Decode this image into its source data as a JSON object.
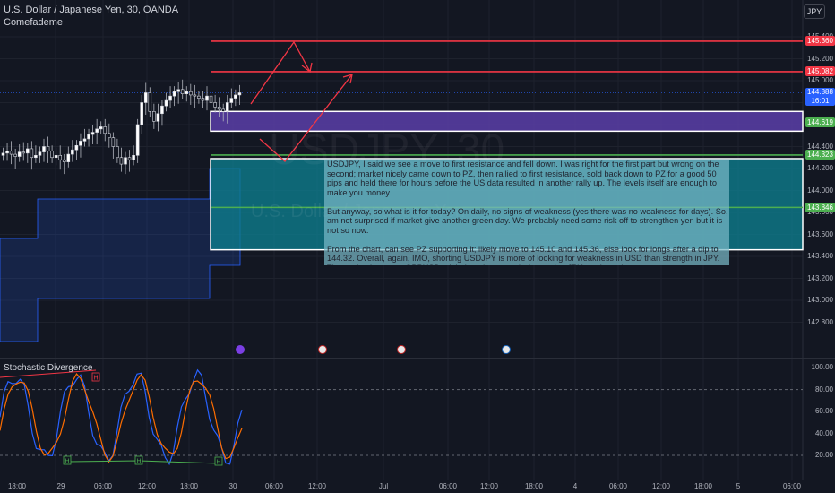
{
  "header": {
    "symbol_line": "U.S. Dollar / Japanese Yen, 30, OANDA",
    "author": "Comefademe"
  },
  "currency_button": "JPY",
  "indicator": {
    "title": "Stochastic Divergence",
    "divergence_labels": [
      "H",
      "H",
      "H",
      "H"
    ]
  },
  "note": {
    "paragraphs": [
      "USDJPY, I said we see a move to first resistance and fell down. I was right for the first part but wrong on the second; market nicely came down to PZ, then rallied to first resistance, sold back down to PZ for a good 50 pips and held there for hours before the US data resulted in another rally up. The levels itself are enough to make you money.",
      "But anyway, so what is it for today? On daily, no signs of weakness (yes there was no weakness for days). So, am not surprised if market give another green day. We probably need some risk off to strengthen yen but it is not so now.",
      "From the chart, can see PZ supporting it; likely move to 145.10 and 145.36, else look for longs after a dip to 144.32. Overall, again, IMO, shorting USDJPY is more of looking for weakness in USD than strength in JPY. Thus going long, say GBPUSD might be a better trade (assuming JPY weakness)."
    ]
  },
  "watermark": {
    "symbol": "USDJPY, 30",
    "name": "U.S. Dollar / Japanese Yen"
  },
  "chart_data": {
    "type": "candlestick",
    "symbol": "U.S. Dollar / Japanese Yen",
    "interval": "30",
    "broker": "OANDA",
    "price_axis": {
      "ticks": [
        "145.400",
        "145.200",
        "145.000",
        "144.800",
        "144.600",
        "144.400",
        "144.200",
        "144.000",
        "143.800",
        "143.600",
        "143.400",
        "143.200",
        "143.000",
        "142.800"
      ],
      "range": [
        142.7,
        145.5
      ]
    },
    "price_badges": [
      {
        "label": "145.360",
        "price": 145.36,
        "color": "#f23645"
      },
      {
        "label": "145.082",
        "price": 145.082,
        "color": "#f23645"
      },
      {
        "label": "144.888",
        "sub": "16:01",
        "price": 144.888,
        "color": "#2962ff"
      },
      {
        "label": "144.619",
        "price": 144.619,
        "color": "#4caf50"
      },
      {
        "label": "144.323",
        "price": 144.323,
        "color": "#4caf50"
      },
      {
        "label": "143.846",
        "price": 143.846,
        "color": "#4caf50"
      }
    ],
    "horizontal_lines": [
      {
        "price": 145.36,
        "color": "#f23645"
      },
      {
        "price": 145.082,
        "color": "#f23645"
      },
      {
        "price": 144.323,
        "color": "#4caf50"
      },
      {
        "price": 143.846,
        "color": "#4caf50"
      }
    ],
    "zones": [
      {
        "from": 144.54,
        "to": 144.72,
        "color": "#5b3ea8"
      },
      {
        "from": 143.46,
        "to": 144.29,
        "color": "#0e7c8c"
      }
    ],
    "time_axis": [
      "18:00",
      "29",
      "06:00",
      "12:00",
      "18:00",
      "30",
      "06:00",
      "12:00",
      "Jul",
      "06:00",
      "12:00",
      "18:00",
      "4",
      "06:00",
      "12:00",
      "18:00",
      "5",
      "06:00"
    ],
    "candles_close_approx": [
      144.34,
      144.36,
      144.33,
      144.31,
      144.35,
      144.34,
      144.38,
      144.3,
      144.32,
      144.35,
      144.4,
      144.36,
      144.3,
      144.32,
      144.28,
      144.26,
      144.33,
      144.37,
      144.41,
      144.45,
      144.47,
      144.51,
      144.53,
      144.56,
      144.58,
      144.52,
      144.48,
      144.4,
      144.3,
      144.24,
      144.3,
      144.28,
      144.32,
      144.6,
      144.8,
      144.89,
      144.72,
      144.63,
      144.7,
      144.77,
      144.82,
      144.86,
      144.9,
      144.92,
      144.88,
      144.9,
      144.87,
      144.86,
      144.84,
      144.82,
      144.86,
      144.8,
      144.76,
      144.74,
      144.72,
      144.8,
      144.84,
      144.87,
      144.89
    ],
    "stochastic_axis": [
      "100.00",
      "80.00",
      "60.00",
      "40.00",
      "20.00"
    ]
  }
}
